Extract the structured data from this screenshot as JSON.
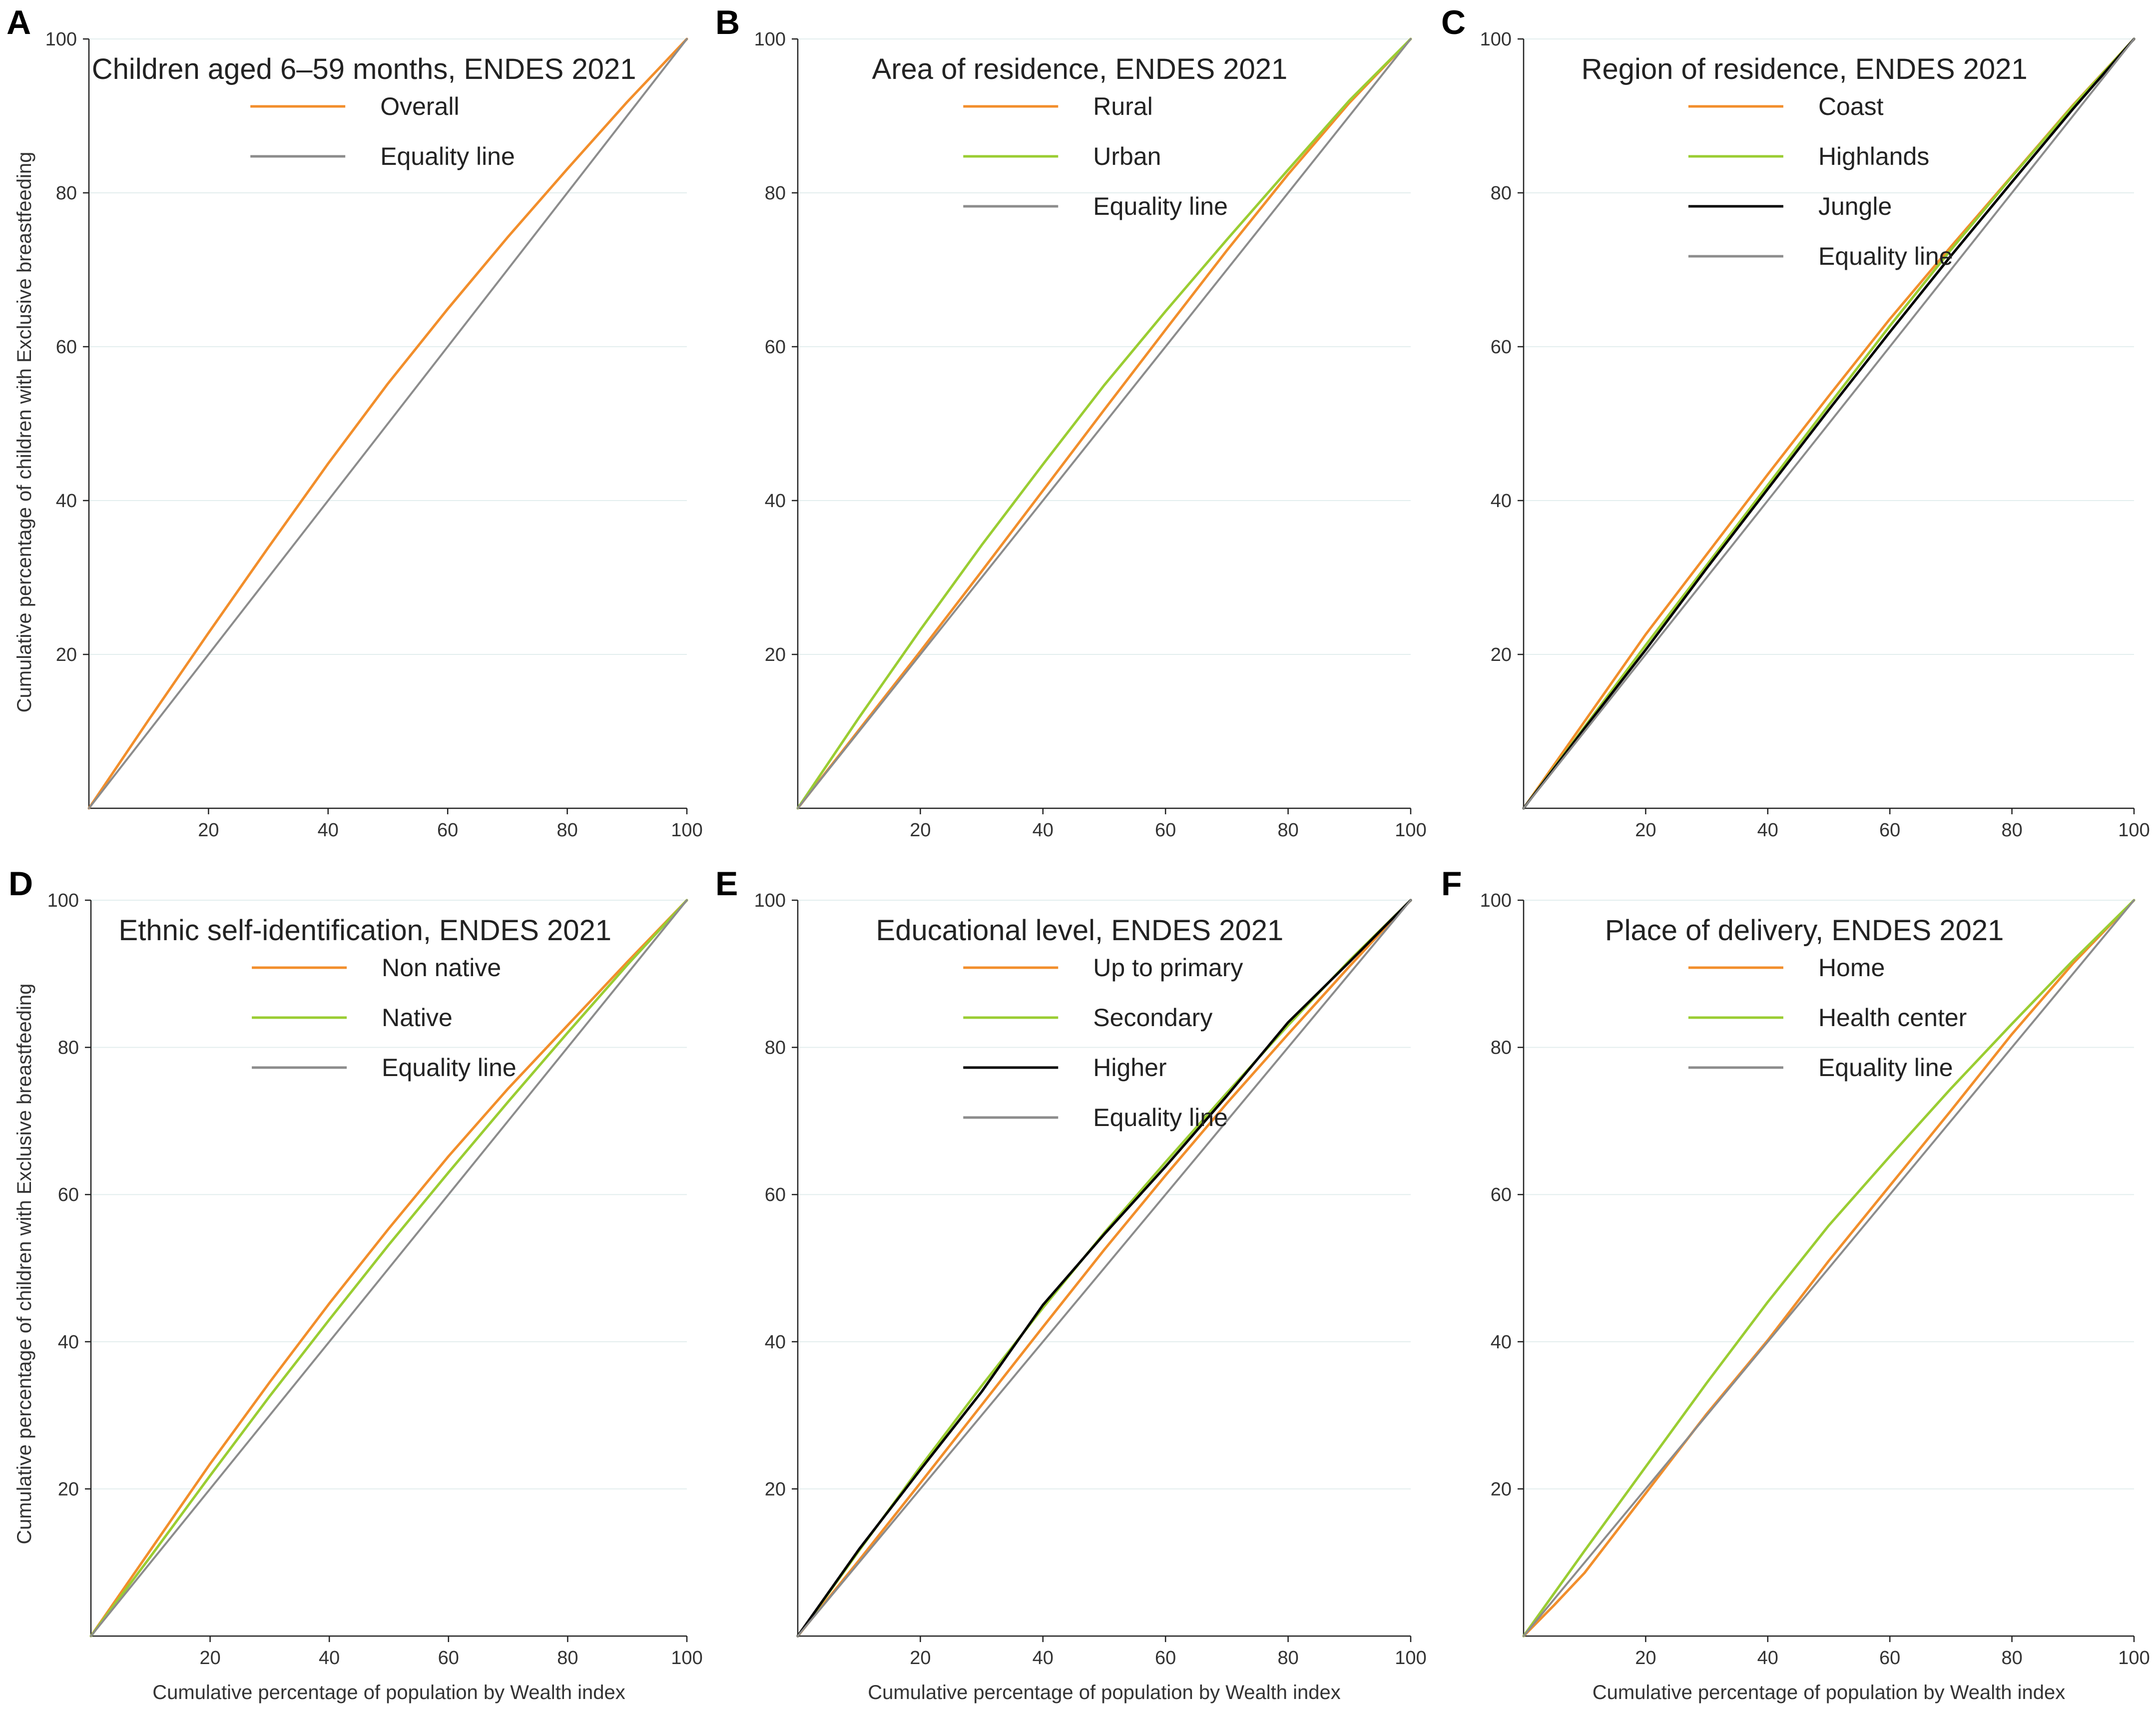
{
  "figure": {
    "y_axis_label": "Cumulative percentage of children with Exclusive breastfeeding",
    "x_axis_label": "Cumulative percentage of population by Wealth index"
  },
  "chart_data": [
    {
      "panel": "A",
      "type": "line",
      "title": "Children aged 6–59 months, ENDES 2021",
      "xlabel": "",
      "ylabel": "Cumulative percentage of children with Exclusive breastfeeding",
      "xlim": [
        0,
        100
      ],
      "ylim": [
        0,
        100
      ],
      "xticks": [
        20,
        40,
        60,
        80,
        100
      ],
      "yticks": [
        20,
        40,
        60,
        80,
        100
      ],
      "series": [
        {
          "name": "Overall",
          "color": "#f28e2b",
          "x": [
            0,
            10,
            20,
            30,
            40,
            50,
            60,
            70,
            80,
            90,
            100
          ],
          "y": [
            0,
            11.5,
            22.8,
            33.9,
            44.8,
            55.2,
            64.9,
            74.2,
            83.1,
            91.8,
            100
          ]
        },
        {
          "name": "Equality line",
          "color": "#8c8c8c",
          "x": [
            0,
            100
          ],
          "y": [
            0,
            100
          ]
        }
      ]
    },
    {
      "panel": "B",
      "type": "line",
      "title": "Area of residence, ENDES 2021",
      "xlabel": "",
      "ylabel": "",
      "xlim": [
        0,
        100
      ],
      "ylim": [
        0,
        100
      ],
      "xticks": [
        20,
        40,
        60,
        80,
        100
      ],
      "yticks": [
        20,
        40,
        60,
        80,
        100
      ],
      "series": [
        {
          "name": "Rural",
          "color": "#f28e2b",
          "x": [
            0,
            10,
            20,
            30,
            40,
            50,
            60,
            70,
            80,
            90,
            100
          ],
          "y": [
            0,
            10.2,
            20.4,
            30.8,
            41.3,
            51.8,
            62.2,
            72.5,
            82.4,
            91.7,
            100
          ]
        },
        {
          "name": "Urban",
          "color": "#9acd32",
          "x": [
            0,
            10,
            20,
            30,
            40,
            50,
            60,
            70,
            80,
            90,
            100
          ],
          "y": [
            0,
            11.8,
            23.2,
            34.2,
            44.7,
            55.0,
            64.6,
            73.9,
            83.0,
            92.0,
            100
          ]
        },
        {
          "name": "Equality line",
          "color": "#8c8c8c",
          "x": [
            0,
            100
          ],
          "y": [
            0,
            100
          ]
        }
      ]
    },
    {
      "panel": "C",
      "type": "line",
      "title": "Region of residence, ENDES 2021",
      "xlabel": "",
      "ylabel": "",
      "xlim": [
        0,
        100
      ],
      "ylim": [
        0,
        100
      ],
      "xticks": [
        20,
        40,
        60,
        80,
        100
      ],
      "yticks": [
        20,
        40,
        60,
        80,
        100
      ],
      "series": [
        {
          "name": "Coast",
          "color": "#f28e2b",
          "x": [
            0,
            10,
            20,
            30,
            40,
            50,
            60,
            70,
            80,
            90,
            100
          ],
          "y": [
            0,
            11.3,
            22.6,
            33.0,
            43.4,
            53.6,
            63.6,
            73.0,
            82.2,
            91.4,
            100
          ]
        },
        {
          "name": "Highlands",
          "color": "#9acd32",
          "x": [
            0,
            10,
            20,
            30,
            40,
            50,
            60,
            70,
            80,
            90,
            100
          ],
          "y": [
            0,
            10.6,
            21.2,
            31.6,
            42.0,
            52.4,
            62.7,
            72.6,
            82.1,
            91.3,
            100
          ]
        },
        {
          "name": "Jungle",
          "color": "#000000",
          "x": [
            0,
            10,
            20,
            30,
            40,
            50,
            60,
            70,
            80,
            90,
            100
          ],
          "y": [
            0,
            10.4,
            20.6,
            31.2,
            41.5,
            51.8,
            61.9,
            71.8,
            81.4,
            90.9,
            100
          ]
        },
        {
          "name": "Equality line",
          "color": "#8c8c8c",
          "x": [
            0,
            100
          ],
          "y": [
            0,
            100
          ]
        }
      ]
    },
    {
      "panel": "D",
      "type": "line",
      "title": "Ethnic self-identification, ENDES 2021",
      "xlabel": "Cumulative percentage of population by Wealth index",
      "ylabel": "Cumulative percentage of children with Exclusive breastfeeding",
      "xlim": [
        0,
        100
      ],
      "ylim": [
        0,
        100
      ],
      "xticks": [
        20,
        40,
        60,
        80,
        100
      ],
      "yticks": [
        20,
        40,
        60,
        80,
        100
      ],
      "series": [
        {
          "name": "Non native",
          "color": "#f28e2b",
          "x": [
            0,
            10,
            20,
            30,
            40,
            50,
            60,
            70,
            80,
            90,
            100
          ],
          "y": [
            0,
            11.7,
            23.4,
            34.5,
            45.2,
            55.4,
            65.2,
            74.4,
            83.0,
            91.6,
            100
          ]
        },
        {
          "name": "Native",
          "color": "#9acd32",
          "x": [
            0,
            10,
            20,
            30,
            40,
            50,
            60,
            70,
            80,
            90,
            100
          ],
          "y": [
            0,
            10.8,
            21.8,
            32.6,
            43.0,
            53.2,
            63.0,
            72.6,
            82.0,
            91.2,
            100
          ]
        },
        {
          "name": "Equality line",
          "color": "#8c8c8c",
          "x": [
            0,
            100
          ],
          "y": [
            0,
            100
          ]
        }
      ]
    },
    {
      "panel": "E",
      "type": "line",
      "title": "Educational level, ENDES 2021",
      "xlabel": "Cumulative percentage of population by Wealth index",
      "ylabel": "",
      "xlim": [
        0,
        100
      ],
      "ylim": [
        0,
        100
      ],
      "xticks": [
        20,
        40,
        60,
        80,
        100
      ],
      "yticks": [
        20,
        40,
        60,
        80,
        100
      ],
      "series": [
        {
          "name": "Up to primary",
          "color": "#f28e2b",
          "x": [
            0,
            10,
            20,
            30,
            40,
            50,
            60,
            70,
            80,
            90,
            100
          ],
          "y": [
            0,
            10.3,
            20.8,
            31.4,
            42.0,
            52.5,
            62.6,
            72.4,
            81.8,
            91.0,
            100
          ]
        },
        {
          "name": "Secondary",
          "color": "#9acd32",
          "x": [
            0,
            10,
            20,
            30,
            40,
            50,
            60,
            70,
            80,
            90,
            100
          ],
          "y": [
            0,
            11.6,
            23.0,
            34.0,
            44.6,
            54.8,
            64.4,
            73.8,
            83.0,
            91.8,
            100
          ]
        },
        {
          "name": "Higher",
          "color": "#000000",
          "x": [
            0,
            10,
            20,
            30,
            40,
            50,
            60,
            70,
            80,
            90,
            100
          ],
          "y": [
            0,
            11.8,
            22.6,
            33.2,
            45.0,
            54.6,
            63.8,
            73.4,
            83.4,
            91.6,
            100
          ]
        },
        {
          "name": "Equality line",
          "color": "#8c8c8c",
          "x": [
            0,
            100
          ],
          "y": [
            0,
            100
          ]
        }
      ]
    },
    {
      "panel": "F",
      "type": "line",
      "title": "Place of delivery, ENDES 2021",
      "xlabel": "Cumulative percentage of population by Wealth index",
      "ylabel": "",
      "xlim": [
        0,
        100
      ],
      "ylim": [
        0,
        100
      ],
      "xticks": [
        20,
        40,
        60,
        80,
        100
      ],
      "yticks": [
        20,
        40,
        60,
        80,
        100
      ],
      "series": [
        {
          "name": "Home",
          "color": "#f28e2b",
          "x": [
            0,
            5,
            10,
            20,
            30,
            40,
            50,
            60,
            70,
            80,
            90,
            100
          ],
          "y": [
            0,
            4.2,
            8.6,
            19.4,
            30.2,
            40.2,
            51.0,
            61.2,
            71.4,
            81.8,
            91.4,
            100
          ]
        },
        {
          "name": "Health center",
          "color": "#9acd32",
          "x": [
            0,
            10,
            20,
            30,
            40,
            50,
            60,
            70,
            80,
            90,
            100
          ],
          "y": [
            0,
            11.6,
            23.0,
            34.4,
            45.4,
            55.8,
            65.2,
            74.4,
            83.2,
            91.8,
            100
          ]
        },
        {
          "name": "Equality line",
          "color": "#8c8c8c",
          "x": [
            0,
            100
          ],
          "y": [
            0,
            100
          ]
        }
      ]
    }
  ]
}
